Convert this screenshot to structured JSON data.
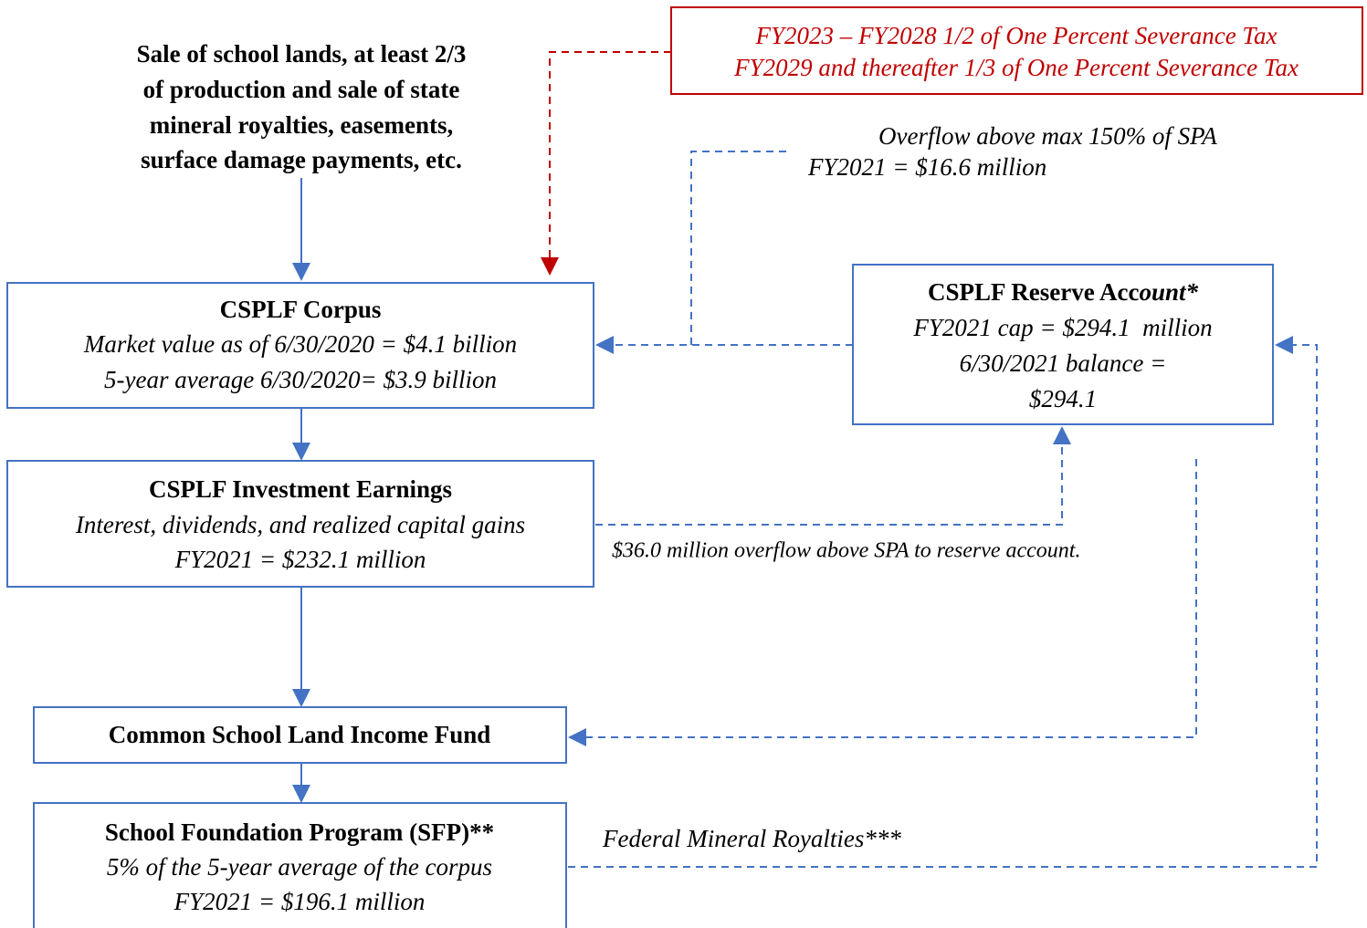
{
  "source": {
    "lines": [
      "Sale of school lands, at least 2/3",
      "of production and sale of state",
      "mineral royalties, easements,",
      "surface damage payments, etc."
    ]
  },
  "severance": {
    "lines": [
      "FY2023 – FY2028 1/2 of One Percent Severance Tax",
      "FY2029 and thereafter 1/3 of One Percent Severance Tax"
    ]
  },
  "overflow_note": {
    "lines": [
      "Overflow above max 150% of SPA",
      "FY2021 = $16.6 million"
    ]
  },
  "nodes": [
    {
      "title": "CSPLF Corpus",
      "lines": [
        "Market value as of 6/30/2020 = $4.1 billion",
        "5-year average 6/30/2020= $3.9 billion"
      ]
    },
    {
      "title": "CSPLF Investment Earnings",
      "lines": [
        "Interest, dividends, and realized capital gains",
        "FY2021 = $232.1 million"
      ]
    },
    {
      "title": "Common School Land Income Fund"
    },
    {
      "title": "School Foundation Program (SFP)**",
      "lines": [
        "5% of the 5-year average of the corpus",
        "FY2021 = $196.1 million"
      ]
    },
    {
      "title_parts": [
        "CSPLF Reserve Acc",
        "ount*"
      ],
      "lines": [
        "FY2021 cap = $294.1  million",
        "6/30/2021 balance =",
        "$294.1"
      ]
    }
  ],
  "reserve_note": "$36.0 million overflow above SPA to reserve account.",
  "federal_note": "Federal Mineral Royalties***"
}
